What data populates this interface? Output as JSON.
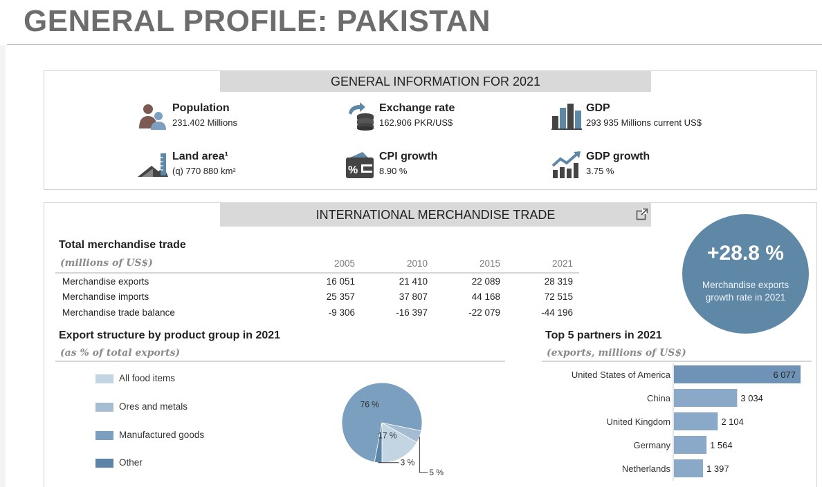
{
  "page_title": "GENERAL PROFILE: PAKISTAN",
  "general": {
    "header": "GENERAL INFORMATION FOR 2021",
    "items": [
      {
        "label": "Population",
        "value": "231.402 Millions",
        "icon": "population-icon"
      },
      {
        "label": "Exchange rate",
        "value": "162.906 PKR/US$",
        "icon": "exchange-rate-icon"
      },
      {
        "label": "GDP",
        "value": "293 935 Millions current US$",
        "icon": "gdp-bar-icon"
      },
      {
        "label": "Land area¹",
        "value": "(q) 770 880 km²",
        "icon": "land-area-icon"
      },
      {
        "label": "CPI growth",
        "value": "8.90 %",
        "icon": "cpi-icon"
      },
      {
        "label": "GDP growth",
        "value": "3.75 %",
        "icon": "gdp-growth-icon"
      }
    ]
  },
  "trade": {
    "header": "INTERNATIONAL MERCHANDISE TRADE",
    "total_title": "Total merchandise trade",
    "total_sub": "(millions of US$)",
    "years": [
      "2005",
      "2010",
      "2015",
      "2021"
    ],
    "rows": [
      {
        "label": "Merchandise exports",
        "values": [
          "16 051",
          "21 410",
          "22 089",
          "28 319"
        ]
      },
      {
        "label": "Merchandise imports",
        "values": [
          "25 357",
          "37 807",
          "44 168",
          "72 515"
        ]
      },
      {
        "label": "Merchandise trade balance",
        "values": [
          "-9 306",
          "-16 397",
          "-22 079",
          "-44 196"
        ]
      }
    ],
    "badge_value": "+28.8 %",
    "badge_text": "Merchandise exports growth rate in 2021",
    "export_title": "Export structure by product group in 2021",
    "export_sub": "(as % of total exports)",
    "partners_title": "Top 5 partners in 2021",
    "partners_sub": "(exports, millions of US$)"
  },
  "colors": {
    "food": "#c3d4e3",
    "ores": "#a4bdd3",
    "manufactured": "#7b9fbf",
    "other": "#5b84a6",
    "bar": "#8aa9c8",
    "bar_top": "#6f93b6",
    "badge": "#5f87a6"
  },
  "chart_data": [
    {
      "type": "pie",
      "title": "Export structure by product group in 2021",
      "subtitle": "(as % of total exports)",
      "slices": [
        {
          "name": "All food items",
          "value": 17,
          "label": "17 %"
        },
        {
          "name": "Ores and metals",
          "value": 5,
          "label": "5 %"
        },
        {
          "name": "Manufactured goods",
          "value": 76,
          "label": "76 %"
        },
        {
          "name": "Other",
          "value": 3,
          "label": "3 %"
        }
      ],
      "legend": "left"
    },
    {
      "type": "bar",
      "orientation": "horizontal",
      "title": "Top 5 partners in 2021",
      "subtitle": "(exports, millions of US$)",
      "categories": [
        "United States of America",
        "China",
        "United Kingdom",
        "Germany",
        "Netherlands"
      ],
      "values": [
        6077,
        3034,
        2104,
        1564,
        1397
      ],
      "value_labels": [
        "6 077",
        "3 034",
        "2 104",
        "1 564",
        "1 397"
      ]
    }
  ]
}
